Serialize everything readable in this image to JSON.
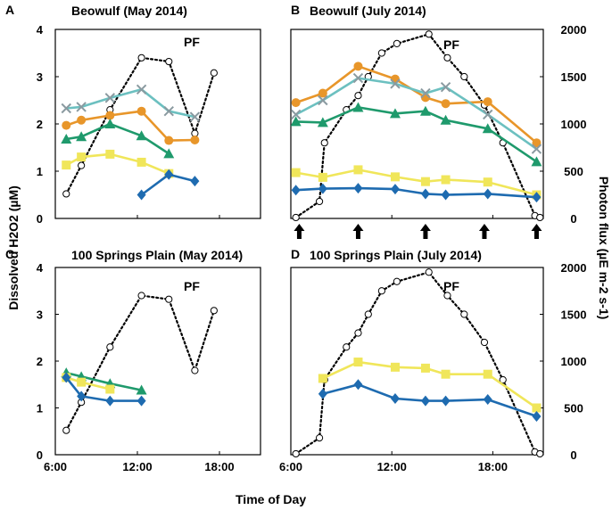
{
  "chart_data": {
    "type": "line",
    "xlabel": "Time of Day",
    "ylabel_left": "Dissolved H2O2 (µM)",
    "ylabel_right": "Photon flux (µE m-2 s-1)",
    "x_ticks": [
      "6:00",
      "12:00",
      "18:00"
    ],
    "y_left_ticks": [
      "0",
      "1",
      "2",
      "3",
      "4"
    ],
    "y_right_ticks": [
      "0",
      "500",
      "1000",
      "1500",
      "2000"
    ],
    "xlim_hours": [
      6,
      21
    ],
    "ylim_left": [
      0,
      4
    ],
    "ylim_right": [
      0,
      2000
    ],
    "colors": {
      "orange": "#E8962A",
      "teal": "#6CC0C0",
      "green": "#1F9A6C",
      "yellow": "#F0E65A",
      "blue": "#1E6BB0",
      "pf": "#000000"
    },
    "panels": [
      {
        "letter": "A",
        "title": "Beowulf (May 2014)",
        "pf_label": "PF",
        "pf": [
          [
            6.8,
            260
          ],
          [
            7.9,
            560
          ],
          [
            10.0,
            1150
          ],
          [
            12.3,
            1700
          ],
          [
            14.3,
            1660
          ],
          [
            16.2,
            900
          ],
          [
            17.6,
            1540
          ]
        ],
        "series": [
          {
            "name": "teal",
            "marker": "x",
            "points": [
              [
                6.8,
                2.33
              ],
              [
                7.9,
                2.36
              ],
              [
                10.0,
                2.55
              ],
              [
                12.3,
                2.73
              ],
              [
                14.3,
                2.27
              ],
              [
                16.2,
                2.15
              ]
            ]
          },
          {
            "name": "orange",
            "marker": "circle",
            "points": [
              [
                6.8,
                1.97
              ],
              [
                7.9,
                2.08
              ],
              [
                10.0,
                2.18
              ],
              [
                12.3,
                2.27
              ],
              [
                14.3,
                1.65
              ],
              [
                16.2,
                1.66
              ]
            ]
          },
          {
            "name": "green",
            "marker": "triangle",
            "points": [
              [
                6.8,
                1.68
              ],
              [
                7.9,
                1.73
              ],
              [
                10.0,
                2.0
              ],
              [
                12.3,
                1.75
              ],
              [
                14.3,
                1.37
              ]
            ]
          },
          {
            "name": "yellow",
            "marker": "square",
            "points": [
              [
                6.8,
                1.13
              ],
              [
                7.9,
                1.3
              ],
              [
                10.0,
                1.36
              ],
              [
                12.3,
                1.19
              ],
              [
                14.3,
                0.95
              ]
            ]
          },
          {
            "name": "blue",
            "marker": "diamond",
            "points": [
              [
                12.3,
                0.5
              ],
              [
                14.3,
                0.93
              ],
              [
                16.2,
                0.79
              ]
            ]
          }
        ],
        "arrows": []
      },
      {
        "letter": "B",
        "title": "Beowulf (July 2014)",
        "pf_label": "PF",
        "pf": [
          [
            6.3,
            10
          ],
          [
            7.7,
            180
          ],
          [
            8.0,
            800
          ],
          [
            9.3,
            1150
          ],
          [
            10.0,
            1300
          ],
          [
            10.6,
            1500
          ],
          [
            11.4,
            1750
          ],
          [
            12.3,
            1850
          ],
          [
            14.2,
            1950
          ],
          [
            15.3,
            1700
          ],
          [
            16.3,
            1500
          ],
          [
            17.5,
            1200
          ],
          [
            18.6,
            800
          ],
          [
            20.5,
            30
          ],
          [
            20.8,
            10
          ]
        ],
        "series": [
          {
            "name": "orange",
            "marker": "circle",
            "points": [
              [
                6.3,
                2.45
              ],
              [
                7.9,
                2.65
              ],
              [
                10.0,
                3.22
              ],
              [
                12.2,
                2.95
              ],
              [
                14.0,
                2.56
              ],
              [
                15.2,
                2.43
              ],
              [
                17.7,
                2.47
              ],
              [
                20.6,
                1.6
              ]
            ]
          },
          {
            "name": "teal",
            "marker": "x",
            "points": [
              [
                6.3,
                2.2
              ],
              [
                7.9,
                2.5
              ],
              [
                10.0,
                2.97
              ],
              [
                12.2,
                2.85
              ],
              [
                14.0,
                2.65
              ],
              [
                15.2,
                2.78
              ],
              [
                17.7,
                2.2
              ],
              [
                20.6,
                1.47
              ]
            ]
          },
          {
            "name": "green",
            "marker": "triangle",
            "points": [
              [
                6.3,
                2.05
              ],
              [
                7.9,
                2.03
              ],
              [
                10.0,
                2.35
              ],
              [
                12.2,
                2.22
              ],
              [
                14.0,
                2.27
              ],
              [
                15.2,
                2.08
              ],
              [
                17.7,
                1.9
              ],
              [
                20.6,
                1.2
              ]
            ]
          },
          {
            "name": "yellow",
            "marker": "square",
            "points": [
              [
                6.3,
                0.97
              ],
              [
                7.9,
                0.87
              ],
              [
                10.0,
                1.03
              ],
              [
                12.2,
                0.88
              ],
              [
                14.0,
                0.78
              ],
              [
                15.2,
                0.82
              ],
              [
                17.7,
                0.77
              ],
              [
                20.6,
                0.5
              ]
            ]
          },
          {
            "name": "blue",
            "marker": "diamond",
            "points": [
              [
                6.3,
                0.6
              ],
              [
                7.9,
                0.63
              ],
              [
                10.0,
                0.64
              ],
              [
                12.2,
                0.62
              ],
              [
                14.0,
                0.52
              ],
              [
                15.2,
                0.5
              ],
              [
                17.7,
                0.52
              ],
              [
                20.6,
                0.45
              ]
            ]
          }
        ],
        "arrows": [
          6.5,
          10.0,
          14.0,
          17.5,
          20.6
        ]
      },
      {
        "letter": "C",
        "title": "100 Springs Plain (May 2014)",
        "pf_label": "PF",
        "pf": [
          [
            6.8,
            260
          ],
          [
            7.9,
            560
          ],
          [
            10.0,
            1150
          ],
          [
            12.3,
            1700
          ],
          [
            14.3,
            1660
          ],
          [
            16.2,
            900
          ],
          [
            17.6,
            1540
          ]
        ],
        "series": [
          {
            "name": "green",
            "marker": "triangle",
            "points": [
              [
                6.8,
                1.75
              ],
              [
                7.9,
                1.67
              ],
              [
                10.0,
                1.52
              ],
              [
                12.3,
                1.38
              ]
            ]
          },
          {
            "name": "yellow",
            "marker": "square",
            "points": [
              [
                6.8,
                1.65
              ],
              [
                7.9,
                1.55
              ],
              [
                10.0,
                1.4
              ]
            ]
          },
          {
            "name": "blue",
            "marker": "diamond",
            "points": [
              [
                6.8,
                1.65
              ],
              [
                7.9,
                1.25
              ],
              [
                10.0,
                1.15
              ],
              [
                12.3,
                1.15
              ]
            ]
          }
        ],
        "arrows": []
      },
      {
        "letter": "D",
        "title": "100 Springs Plain (July 2014)",
        "pf_label": "PF",
        "pf": [
          [
            6.3,
            10
          ],
          [
            7.7,
            180
          ],
          [
            8.0,
            800
          ],
          [
            9.3,
            1150
          ],
          [
            10.0,
            1300
          ],
          [
            10.6,
            1500
          ],
          [
            11.4,
            1750
          ],
          [
            12.3,
            1850
          ],
          [
            14.2,
            1950
          ],
          [
            15.3,
            1700
          ],
          [
            16.3,
            1500
          ],
          [
            17.5,
            1200
          ],
          [
            18.6,
            800
          ],
          [
            20.5,
            30
          ],
          [
            20.8,
            10
          ]
        ],
        "series": [
          {
            "name": "yellow",
            "marker": "square",
            "points": [
              [
                7.9,
                1.63
              ],
              [
                10.0,
                1.98
              ],
              [
                12.2,
                1.87
              ],
              [
                14.0,
                1.85
              ],
              [
                15.2,
                1.72
              ],
              [
                17.7,
                1.72
              ],
              [
                20.6,
                1.0
              ]
            ]
          },
          {
            "name": "blue",
            "marker": "diamond",
            "points": [
              [
                7.9,
                1.3
              ],
              [
                10.0,
                1.5
              ],
              [
                12.2,
                1.2
              ],
              [
                14.0,
                1.15
              ],
              [
                15.2,
                1.15
              ],
              [
                17.7,
                1.18
              ],
              [
                20.6,
                0.82
              ]
            ]
          }
        ],
        "arrows": []
      }
    ]
  }
}
